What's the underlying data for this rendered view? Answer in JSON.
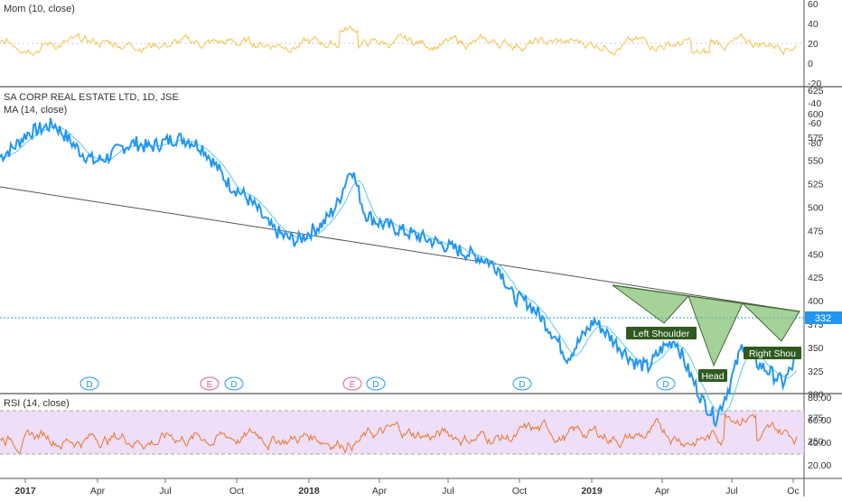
{
  "chart_data": {
    "type": "line",
    "symbol_title": "SA CORP REAL ESTATE LTD, 1D, JSE",
    "last_price": "332",
    "x_ticks": [
      "2017",
      "Apr",
      "Jul",
      "Oct",
      "2018",
      "Apr",
      "Jul",
      "Oct",
      "2019",
      "Apr",
      "Jul",
      "Oc"
    ],
    "panes": {
      "momentum": {
        "title": "Mom (10, close)",
        "y_ticks": [
          "60",
          "40",
          "20",
          "0",
          "-20",
          "-40",
          "-60",
          "-80"
        ],
        "color": "#f5c04a"
      },
      "price": {
        "indicator": "MA (14, close)",
        "y_ticks": [
          "625",
          "600",
          "575",
          "550",
          "525",
          "500",
          "475",
          "450",
          "425",
          "400",
          "375",
          "350",
          "325",
          "300",
          "275",
          "250"
        ],
        "line_color": "#2196f3",
        "ma_color": "#5ec8e8",
        "series": [
          {
            "values": [
              550,
              560,
              575,
              580,
              585,
              570,
              555,
              545,
              550,
              560,
              565,
              560,
              565,
              570,
              568,
              560,
              540,
              520,
              510,
              495,
              475,
              465,
              460,
              470,
              480,
              500,
              540,
              490,
              480,
              475,
              470,
              465,
              460,
              455,
              450,
              445,
              440,
              430,
              400,
              395,
              380,
              360,
              335,
              355,
              375,
              360,
              345,
              330,
              325,
              345,
              355,
              320,
              290,
              270,
              305,
              350,
              330,
              320,
              308,
              335
            ]
          }
        ],
        "pattern_labels": [
          "Left Shoulder",
          "Head",
          "Right Shou"
        ],
        "pattern_fill": "#7dbf6e",
        "dividends_row": [
          "D",
          "E",
          "D",
          "E",
          "D",
          "D",
          "D"
        ]
      },
      "rsi": {
        "title": "RSI (14, close)",
        "y_ticks": [
          "80.00",
          "60.00",
          "40.00",
          "20.00"
        ],
        "color": "#e8772e",
        "band": [
          30,
          70
        ]
      }
    }
  }
}
